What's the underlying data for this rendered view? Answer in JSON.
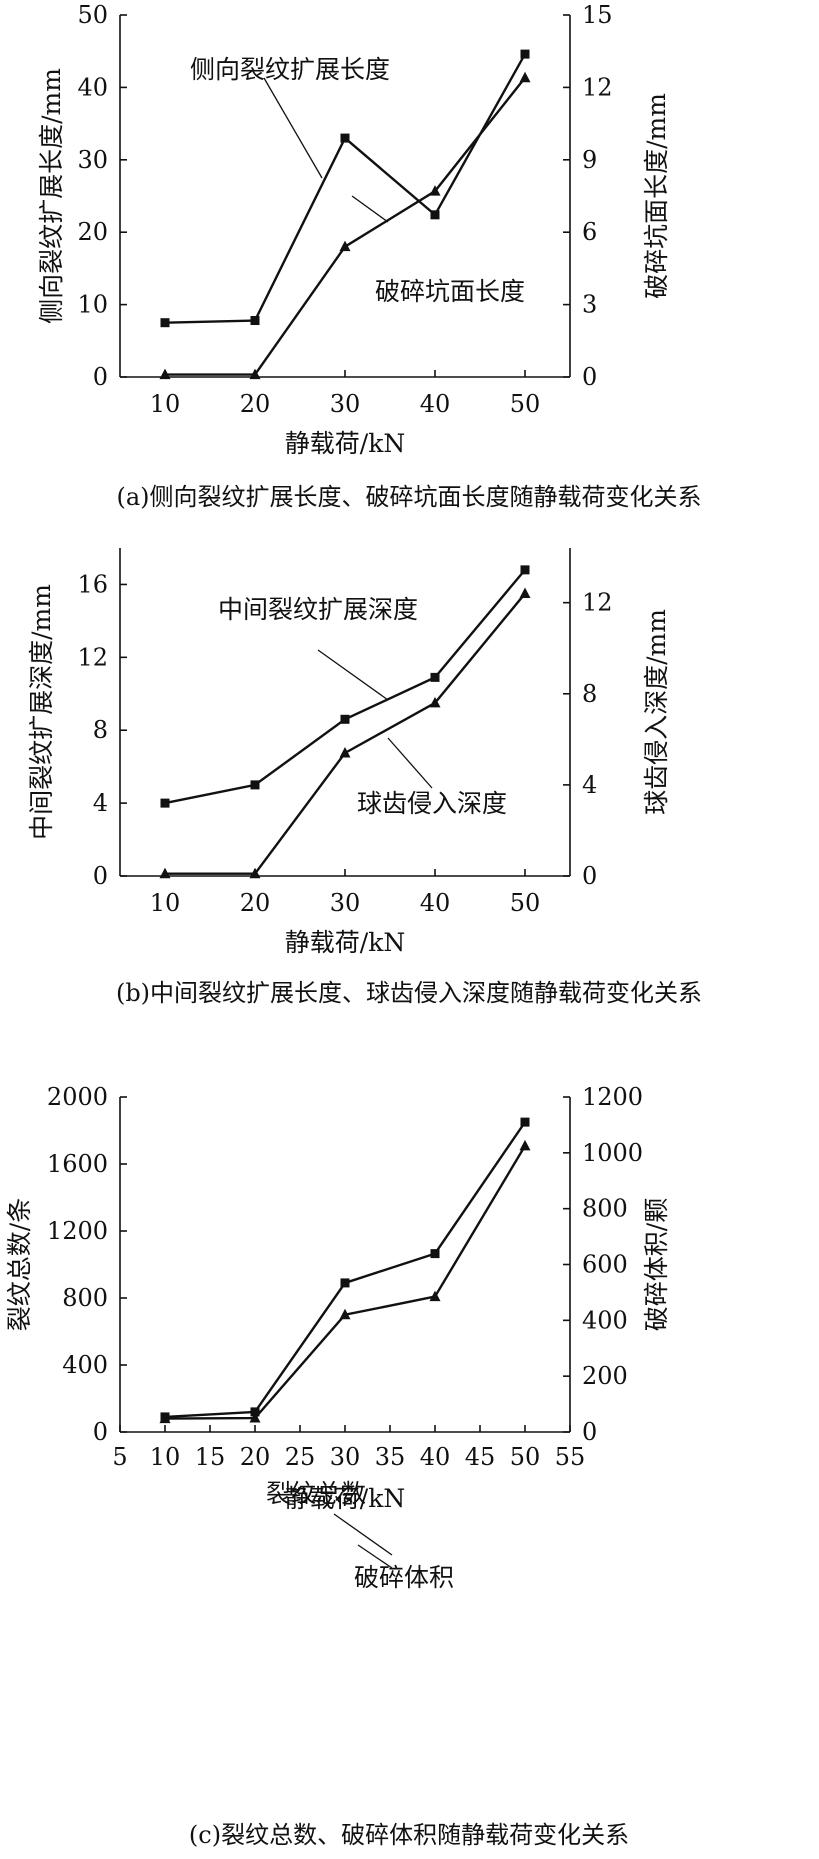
{
  "chart_data": [
    {
      "type": "line",
      "caption": "(a)侧向裂纹扩展长度、破碎坑面长度随静载荷变化关系",
      "xlabel": "静载荷/kN",
      "ylabel_left": "侧向裂纹扩展长度/mm",
      "ylabel_right": "破碎坑面长度/mm",
      "xlim": [
        5,
        55
      ],
      "xticks": [
        10,
        20,
        30,
        40,
        50
      ],
      "ylim_left": [
        0,
        50
      ],
      "yticks_left": [
        0,
        10,
        20,
        30,
        40,
        50
      ],
      "ylim_right": [
        0,
        15
      ],
      "yticks_right": [
        0,
        3,
        6,
        9,
        12,
        15
      ],
      "x": [
        10,
        20,
        30,
        40,
        50
      ],
      "series": [
        {
          "name": "侧向裂纹扩展长度",
          "axis": "left",
          "marker": "square",
          "values": [
            7.5,
            7.8,
            33.0,
            22.4,
            44.6
          ]
        },
        {
          "name": "破碎坑面长度",
          "axis": "right",
          "marker": "triangle",
          "values": [
            0.1,
            0.1,
            5.4,
            7.7,
            12.4
          ]
        }
      ]
    },
    {
      "type": "line",
      "caption": "(b)中间裂纹扩展长度、球齿侵入深度随静载荷变化关系",
      "xlabel": "静载荷/kN",
      "ylabel_left": "中间裂纹扩展深度/mm",
      "ylabel_right": "球齿侵入深度/mm",
      "xlim": [
        5,
        55
      ],
      "xticks": [
        10,
        20,
        30,
        40,
        50
      ],
      "ylim_left": [
        0,
        18
      ],
      "yticks_left": [
        0,
        4,
        8,
        12,
        16
      ],
      "ylim_right": [
        0,
        14.4
      ],
      "yticks_right": [
        0,
        4,
        8,
        12
      ],
      "x": [
        10,
        20,
        30,
        40,
        50
      ],
      "series": [
        {
          "name": "中间裂纹扩展深度",
          "axis": "left",
          "marker": "square",
          "values": [
            4.0,
            5.0,
            8.6,
            10.9,
            16.8
          ]
        },
        {
          "name": "球齿侵入深度",
          "axis": "right",
          "marker": "triangle",
          "values": [
            0.1,
            0.1,
            5.4,
            7.6,
            12.4
          ]
        }
      ]
    },
    {
      "type": "line",
      "caption": "(c)裂纹总数、破碎体积随静载荷变化关系",
      "xlabel": "静载荷/kN",
      "ylabel_left": "裂纹总数/条",
      "ylabel_right": "破碎体积/颗",
      "xlim": [
        5,
        55
      ],
      "xticks": [
        5,
        10,
        15,
        20,
        25,
        30,
        35,
        40,
        45,
        50,
        55
      ],
      "ylim_left": [
        0,
        2000
      ],
      "yticks_left": [
        0,
        400,
        800,
        1200,
        1600,
        2000
      ],
      "ylim_right": [
        0,
        1200
      ],
      "yticks_right": [
        0,
        200,
        400,
        600,
        800,
        1000,
        1200
      ],
      "x": [
        10,
        20,
        30,
        40,
        50
      ],
      "series": [
        {
          "name": "裂纹总数",
          "axis": "left",
          "marker": "square",
          "values": [
            90,
            120,
            890,
            1065,
            1850
          ]
        },
        {
          "name": "破碎体积",
          "axis": "right",
          "marker": "triangle",
          "values": [
            48,
            50,
            420,
            485,
            1025
          ]
        }
      ]
    }
  ]
}
